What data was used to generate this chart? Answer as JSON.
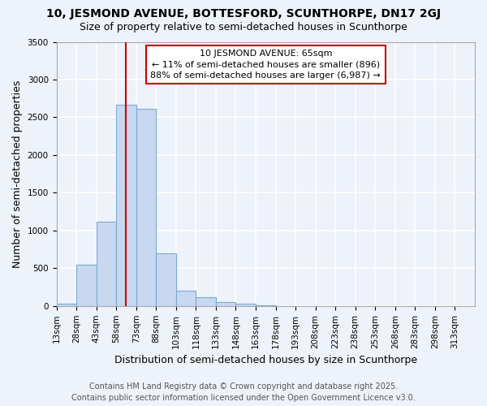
{
  "title1": "10, JESMOND AVENUE, BOTTESFORD, SCUNTHORPE, DN17 2GJ",
  "title2": "Size of property relative to semi-detached houses in Scunthorpe",
  "xlabel": "Distribution of semi-detached houses by size in Scunthorpe",
  "ylabel": "Number of semi-detached properties",
  "bar_color": "#c8d8f0",
  "bar_edge_color": "#7aaad0",
  "bins": [
    13,
    28,
    43,
    58,
    73,
    88,
    103,
    118,
    133,
    148,
    163,
    178,
    193,
    208,
    223,
    238,
    253,
    268,
    283,
    298,
    313
  ],
  "counts": [
    30,
    550,
    1120,
    2670,
    2610,
    700,
    200,
    115,
    50,
    30,
    5,
    1,
    0,
    0,
    0,
    0,
    0,
    0,
    0,
    0
  ],
  "property_size": 65,
  "vline_color": "#cc0000",
  "annot_line1": "10 JESMOND AVENUE: 65sqm",
  "annot_line2": "← 11% of semi-detached houses are smaller (896)",
  "annot_line3": "88% of semi-detached houses are larger (6,987) →",
  "annotation_box_color": "white",
  "annotation_box_edge": "#cc0000",
  "ylim": [
    0,
    3500
  ],
  "yticks": [
    0,
    500,
    1000,
    1500,
    2000,
    2500,
    3000,
    3500
  ],
  "footnote1": "Contains HM Land Registry data © Crown copyright and database right 2025.",
  "footnote2": "Contains public sector information licensed under the Open Government Licence v3.0.",
  "bg_color": "#eef2fa",
  "grid_color": "white",
  "title1_fontsize": 10,
  "title2_fontsize": 9,
  "axis_label_fontsize": 9,
  "tick_fontsize": 7.5,
  "annot_fontsize": 8,
  "footnote_fontsize": 7
}
